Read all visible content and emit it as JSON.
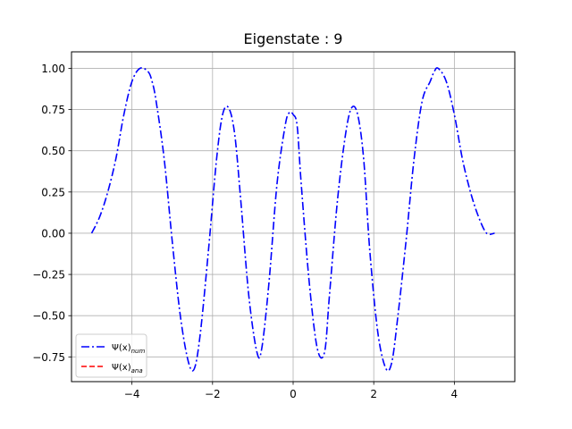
{
  "chart_data": {
    "type": "line",
    "title": "Eigenstate : 9",
    "xlabel": "",
    "ylabel": "",
    "xlim": [
      -5.5,
      5.5
    ],
    "ylim": [
      -0.9,
      1.1
    ],
    "xticks": [
      -4,
      -2,
      0,
      2,
      4
    ],
    "xtick_labels": [
      "−4",
      "−2",
      "0",
      "2",
      "4"
    ],
    "yticks": [
      -0.75,
      -0.5,
      -0.25,
      0.0,
      0.25,
      0.5,
      0.75,
      1.0
    ],
    "ytick_labels": [
      "−0.75",
      "−0.50",
      "−0.25",
      "0.00",
      "0.25",
      "0.50",
      "0.75",
      "1.00"
    ],
    "grid": true,
    "legend_position": "lower-left",
    "series": [
      {
        "name": "Ψ(x)",
        "name_sub": "num",
        "color": "#0000ff",
        "linestyle": "dashdot",
        "x": [
          -5.0,
          -4.8,
          -4.6,
          -4.4,
          -4.2,
          -4.0,
          -3.8,
          -3.6,
          -3.5,
          -3.4,
          -3.2,
          -3.0,
          -2.8,
          -2.6,
          -2.45,
          -2.3,
          -2.1,
          -1.9,
          -1.75,
          -1.6,
          -1.45,
          -1.3,
          -1.1,
          -0.9,
          -0.78,
          -0.6,
          -0.4,
          -0.2,
          -0.1,
          0.0,
          0.1,
          0.2,
          0.4,
          0.6,
          0.78,
          0.9,
          1.1,
          1.3,
          1.45,
          1.6,
          1.75,
          1.9,
          2.1,
          2.3,
          2.45,
          2.6,
          2.8,
          3.0,
          3.2,
          3.4,
          3.5,
          3.6,
          3.8,
          4.0,
          4.2,
          4.4,
          4.6,
          4.8,
          5.0
        ],
        "y": [
          0.0,
          0.1,
          0.25,
          0.45,
          0.72,
          0.92,
          1.0,
          0.98,
          0.92,
          0.8,
          0.45,
          -0.05,
          -0.5,
          -0.78,
          -0.82,
          -0.6,
          -0.1,
          0.45,
          0.72,
          0.76,
          0.6,
          0.2,
          -0.38,
          -0.72,
          -0.7,
          -0.3,
          0.3,
          0.65,
          0.73,
          0.72,
          0.65,
          0.3,
          -0.3,
          -0.7,
          -0.72,
          -0.38,
          0.2,
          0.6,
          0.76,
          0.72,
          0.45,
          -0.1,
          -0.6,
          -0.82,
          -0.78,
          -0.5,
          -0.05,
          0.45,
          0.8,
          0.92,
          0.98,
          1.0,
          0.92,
          0.72,
          0.45,
          0.25,
          0.1,
          0.0,
          0.0
        ]
      },
      {
        "name": "Ψ(x)",
        "name_sub": "ana",
        "color": "#ff0000",
        "linestyle": "dashed",
        "x": [],
        "y": []
      }
    ]
  }
}
